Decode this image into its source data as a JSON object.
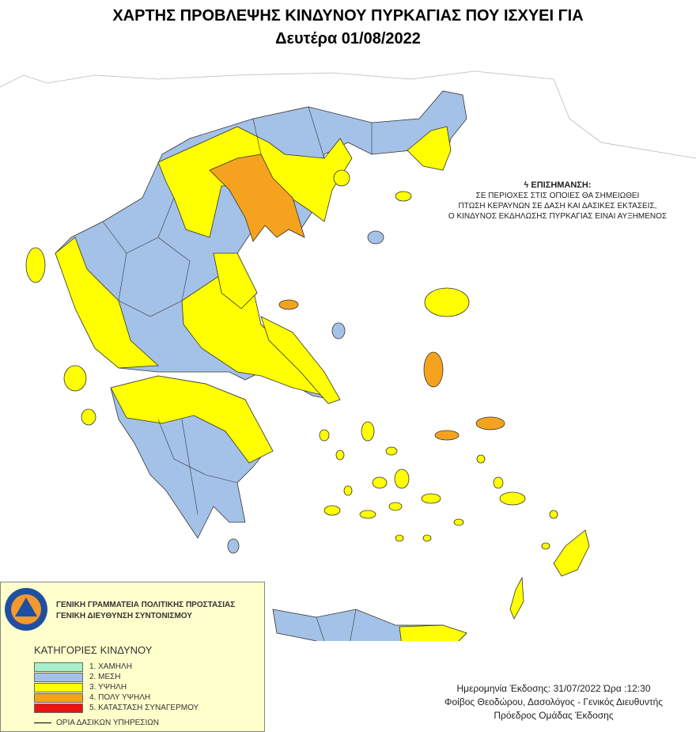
{
  "title": {
    "line1": "ΧΑΡΤΗΣ ΠΡΟΒΛΕΨΗΣ ΚΙΝΔΥΝΟΥ ΠΥΡΚΑΓΙΑΣ ΠΟΥ ΙΣΧΥΕΙ ΓΙΑ",
    "line2": "Δευτέρα 01/08/2022"
  },
  "warning": {
    "icon": "lightning-icon",
    "title": "ΕΠΙΣΗΜΑΝΣΗ:",
    "lines": [
      "ΣΕ ΠΕΡΙΟΧΕΣ ΣΤΙΣ ΟΠΟΙΕΣ ΘΑ ΣΗΜΕΙΩΘΕΙ",
      "ΠΤΩΣΗ ΚΕΡΑΥΝΩΝ ΣΕ ΔΑΣΗ ΚΑΙ ΔΑΣΙΚΕΣ ΕΚΤΑΣΕΙΣ,",
      "Ο ΚΙΝΔΥΝΟΣ ΕΚΔΗΛΩΣΗΣ ΠΥΡΚΑΓΙΑΣ ΕΙΝΑΙ ΑΥΞΗΜΕΝΟΣ"
    ]
  },
  "legend": {
    "logo_text": "ΠΟΛΙΤΙΚΗ ΠΡΟΣΤΑΣΙΑ ΕΛΛΑΣ",
    "org": [
      "ΓΕΝΙΚΗ ΓΡΑΜΜΑΤΕΙΑ ΠΟΛΙΤΙΚΗΣ ΠΡΟΣΤΑΣΙΑΣ",
      "ΓΕΝΙΚΗ ΔΙΕΥΘΥΝΣΗ ΣΥΝΤΟΝΙΣΜΟΥ"
    ],
    "categories_title": "ΚΑΤΗΓΟΡΙΕΣ ΚΙΝΔΥΝΟΥ",
    "categories": [
      {
        "label": "1. ΧΑΜΗΛΗ",
        "color": "#a8f0c8"
      },
      {
        "label": "2. ΜΕΣΗ",
        "color": "#a4c2e8"
      },
      {
        "label": "3. ΥΨΗΛΗ",
        "color": "#ffff00"
      },
      {
        "label": "4. ΠΟΛΥ ΥΨΗΛΗ",
        "color": "#f5a21e"
      },
      {
        "label": "5. ΚΑΤΑΣΤΑΣΗ ΣΥΝΑΓΕΡΜΟΥ",
        "color": "#ee1111"
      }
    ],
    "border_label": "ΟΡΙΑ ΔΑΣΙΚΩΝ ΥΠΗΡΕΣΙΩΝ"
  },
  "issue": {
    "date_line": "Ημερομηνία Έκδοσης: 31/07/2022  Ώρα :12:30",
    "signer": "Φοίβος Θεοδώρου, Δασολόγος - Γενικός Διευθυντής",
    "role": "Πρόεδρος Ομάδας Έκδοσης"
  }
}
